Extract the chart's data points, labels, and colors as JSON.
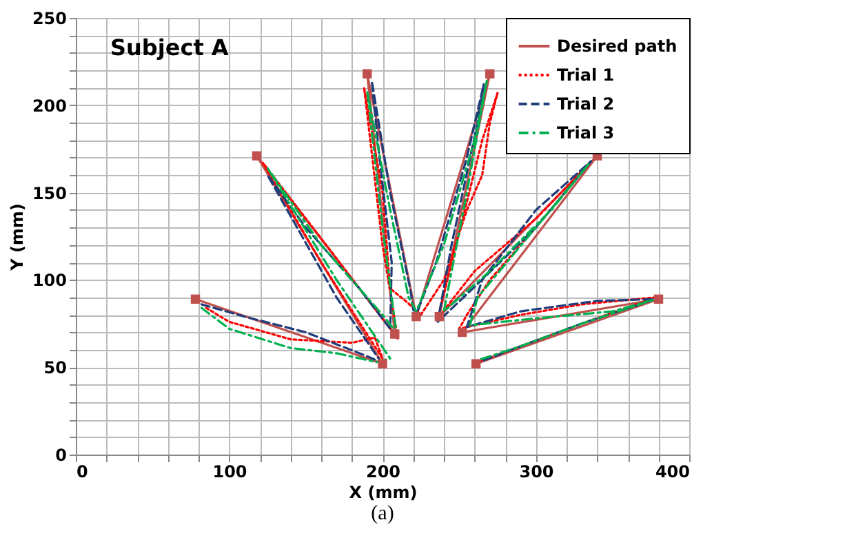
{
  "chart_data": {
    "type": "line",
    "title": "Subject A",
    "xlabel": "X (mm)",
    "ylabel": "Y (mm)",
    "annotations": [
      "(a)"
    ],
    "xlim": [
      0,
      400
    ],
    "ylim": [
      0,
      250
    ],
    "xticks": [
      0,
      {
        "value": 20,
        "label": null
      },
      {
        "value": 40,
        "label": null
      },
      {
        "value": 60,
        "label": null
      },
      {
        "value": 80,
        "label": null
      },
      100,
      {
        "value": 120,
        "label": null
      },
      {
        "value": 140,
        "label": null
      },
      {
        "value": 160,
        "label": null
      },
      {
        "value": 180,
        "label": null
      },
      200,
      {
        "value": 220,
        "label": null
      },
      {
        "value": 240,
        "label": null
      },
      {
        "value": 260,
        "label": null
      },
      {
        "value": 280,
        "label": null
      },
      300,
      {
        "value": 320,
        "label": null
      },
      {
        "value": 340,
        "label": null
      },
      {
        "value": 360,
        "label": null
      },
      {
        "value": 380,
        "label": null
      },
      400
    ],
    "yticks": [
      0,
      {
        "value": 10,
        "label": null
      },
      {
        "value": 20,
        "label": null
      },
      {
        "value": 30,
        "label": null
      },
      {
        "value": 40,
        "label": null
      },
      50,
      {
        "value": 60,
        "label": null
      },
      {
        "value": 70,
        "label": null
      },
      {
        "value": 80,
        "label": null
      },
      {
        "value": 90,
        "label": null
      },
      100,
      {
        "value": 110,
        "label": null
      },
      {
        "value": 120,
        "label": null
      },
      {
        "value": 130,
        "label": null
      },
      {
        "value": 140,
        "label": null
      },
      150,
      {
        "value": 160,
        "label": null
      },
      {
        "value": 170,
        "label": null
      },
      {
        "value": 180,
        "label": null
      },
      {
        "value": 190,
        "label": null
      },
      200,
      {
        "value": 210,
        "label": null
      },
      {
        "value": 220,
        "label": null
      },
      {
        "value": 230,
        "label": null
      },
      {
        "value": 240,
        "label": null
      },
      250
    ],
    "grid": true,
    "legend": "top right",
    "series": [
      {
        "name": "Desired path",
        "color": "#c0504d",
        "marker": "square",
        "line_style": "solid",
        "x": [
          78,
          200,
          118,
          208,
          190,
          222,
          270,
          237,
          340,
          252,
          380,
          261
        ],
        "values": [
          89,
          52,
          171,
          69,
          218,
          79,
          218,
          79,
          171,
          70,
          89,
          52
        ]
      },
      {
        "name": "Trial 1",
        "color": "#ff0000",
        "marker": "none",
        "line_style": "dotted",
        "x": [
          85,
          100,
          140,
          180,
          195,
          200,
          160,
          122,
          165,
          205,
          210,
          200,
          188,
          200,
          205,
          215,
          225,
          240,
          255,
          265,
          270,
          275,
          265,
          248,
          236,
          260,
          300,
          335,
          300,
          270,
          255,
          250,
          290,
          330,
          378,
          330,
          290,
          262
        ],
        "values": [
          84,
          76,
          66,
          64,
          67,
          55,
          110,
          167,
          118,
          72,
          66,
          120,
          210,
          150,
          95,
          88,
          80,
          100,
          140,
          160,
          190,
          207,
          180,
          120,
          78,
          105,
          135,
          167,
          130,
          100,
          80,
          72,
          80,
          86,
          90,
          75,
          62,
          53
        ]
      },
      {
        "name": "Trial 2",
        "color": "#1f3d7a",
        "marker": "none",
        "line_style": "dashed",
        "x": [
          82,
          110,
          150,
          185,
          199,
          170,
          125,
          150,
          185,
          205,
          206,
          198,
          193,
          205,
          218,
          221,
          235,
          255,
          266,
          262,
          245,
          236,
          260,
          300,
          336,
          300,
          265,
          255,
          290,
          340,
          378,
          330,
          290,
          263
        ],
        "values": [
          86,
          79,
          70,
          58,
          53,
          90,
          160,
          130,
          95,
          72,
          110,
          170,
          214,
          150,
          95,
          78,
          110,
          170,
          212,
          190,
          120,
          76,
          96,
          130,
          168,
          140,
          100,
          73,
          82,
          88,
          89,
          75,
          62,
          53
        ]
      },
      {
        "name": "Trial 3",
        "color": "#00b050",
        "marker": "none",
        "line_style": "dashdot",
        "x": [
          82,
          100,
          140,
          170,
          196,
          205,
          170,
          125,
          160,
          200,
          209,
          200,
          190,
          205,
          217,
          222,
          240,
          260,
          268,
          255,
          240,
          270,
          310,
          335,
          300,
          262,
          257,
          300,
          350,
          378,
          330,
          290,
          262
        ],
        "values": [
          84,
          72,
          61,
          58,
          53,
          55,
          100,
          164,
          120,
          80,
          70,
          130,
          208,
          140,
          90,
          82,
          120,
          180,
          214,
          150,
          82,
          105,
          140,
          167,
          130,
          90,
          74,
          78,
          82,
          89,
          75,
          62,
          54
        ]
      }
    ]
  }
}
